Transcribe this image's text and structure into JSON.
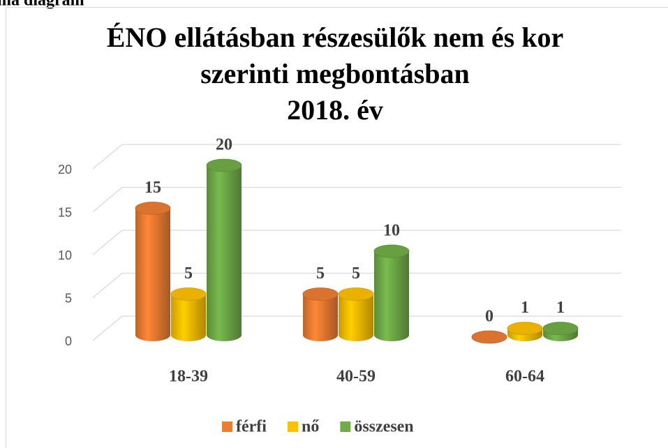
{
  "caption": "ma diagram",
  "chart_data": {
    "type": "bar3d",
    "title": [
      "ÉNO ellátásban részesülők nem és kor",
      "szerinti megbontásban",
      "2018. év"
    ],
    "categories": [
      "18-39",
      "40-59",
      "60-64"
    ],
    "series": [
      {
        "name": "férfi",
        "color": "#ed7d31",
        "values": [
          15,
          5,
          0
        ]
      },
      {
        "name": "nő",
        "color": "#ffc000",
        "values": [
          5,
          5,
          1
        ]
      },
      {
        "name": "összesen",
        "color": "#70ad47",
        "values": [
          20,
          10,
          1
        ]
      }
    ],
    "ylim": [
      0,
      20
    ],
    "yticks": [
      0,
      5,
      10,
      15,
      20
    ],
    "grid": true,
    "legend": "bottom"
  }
}
